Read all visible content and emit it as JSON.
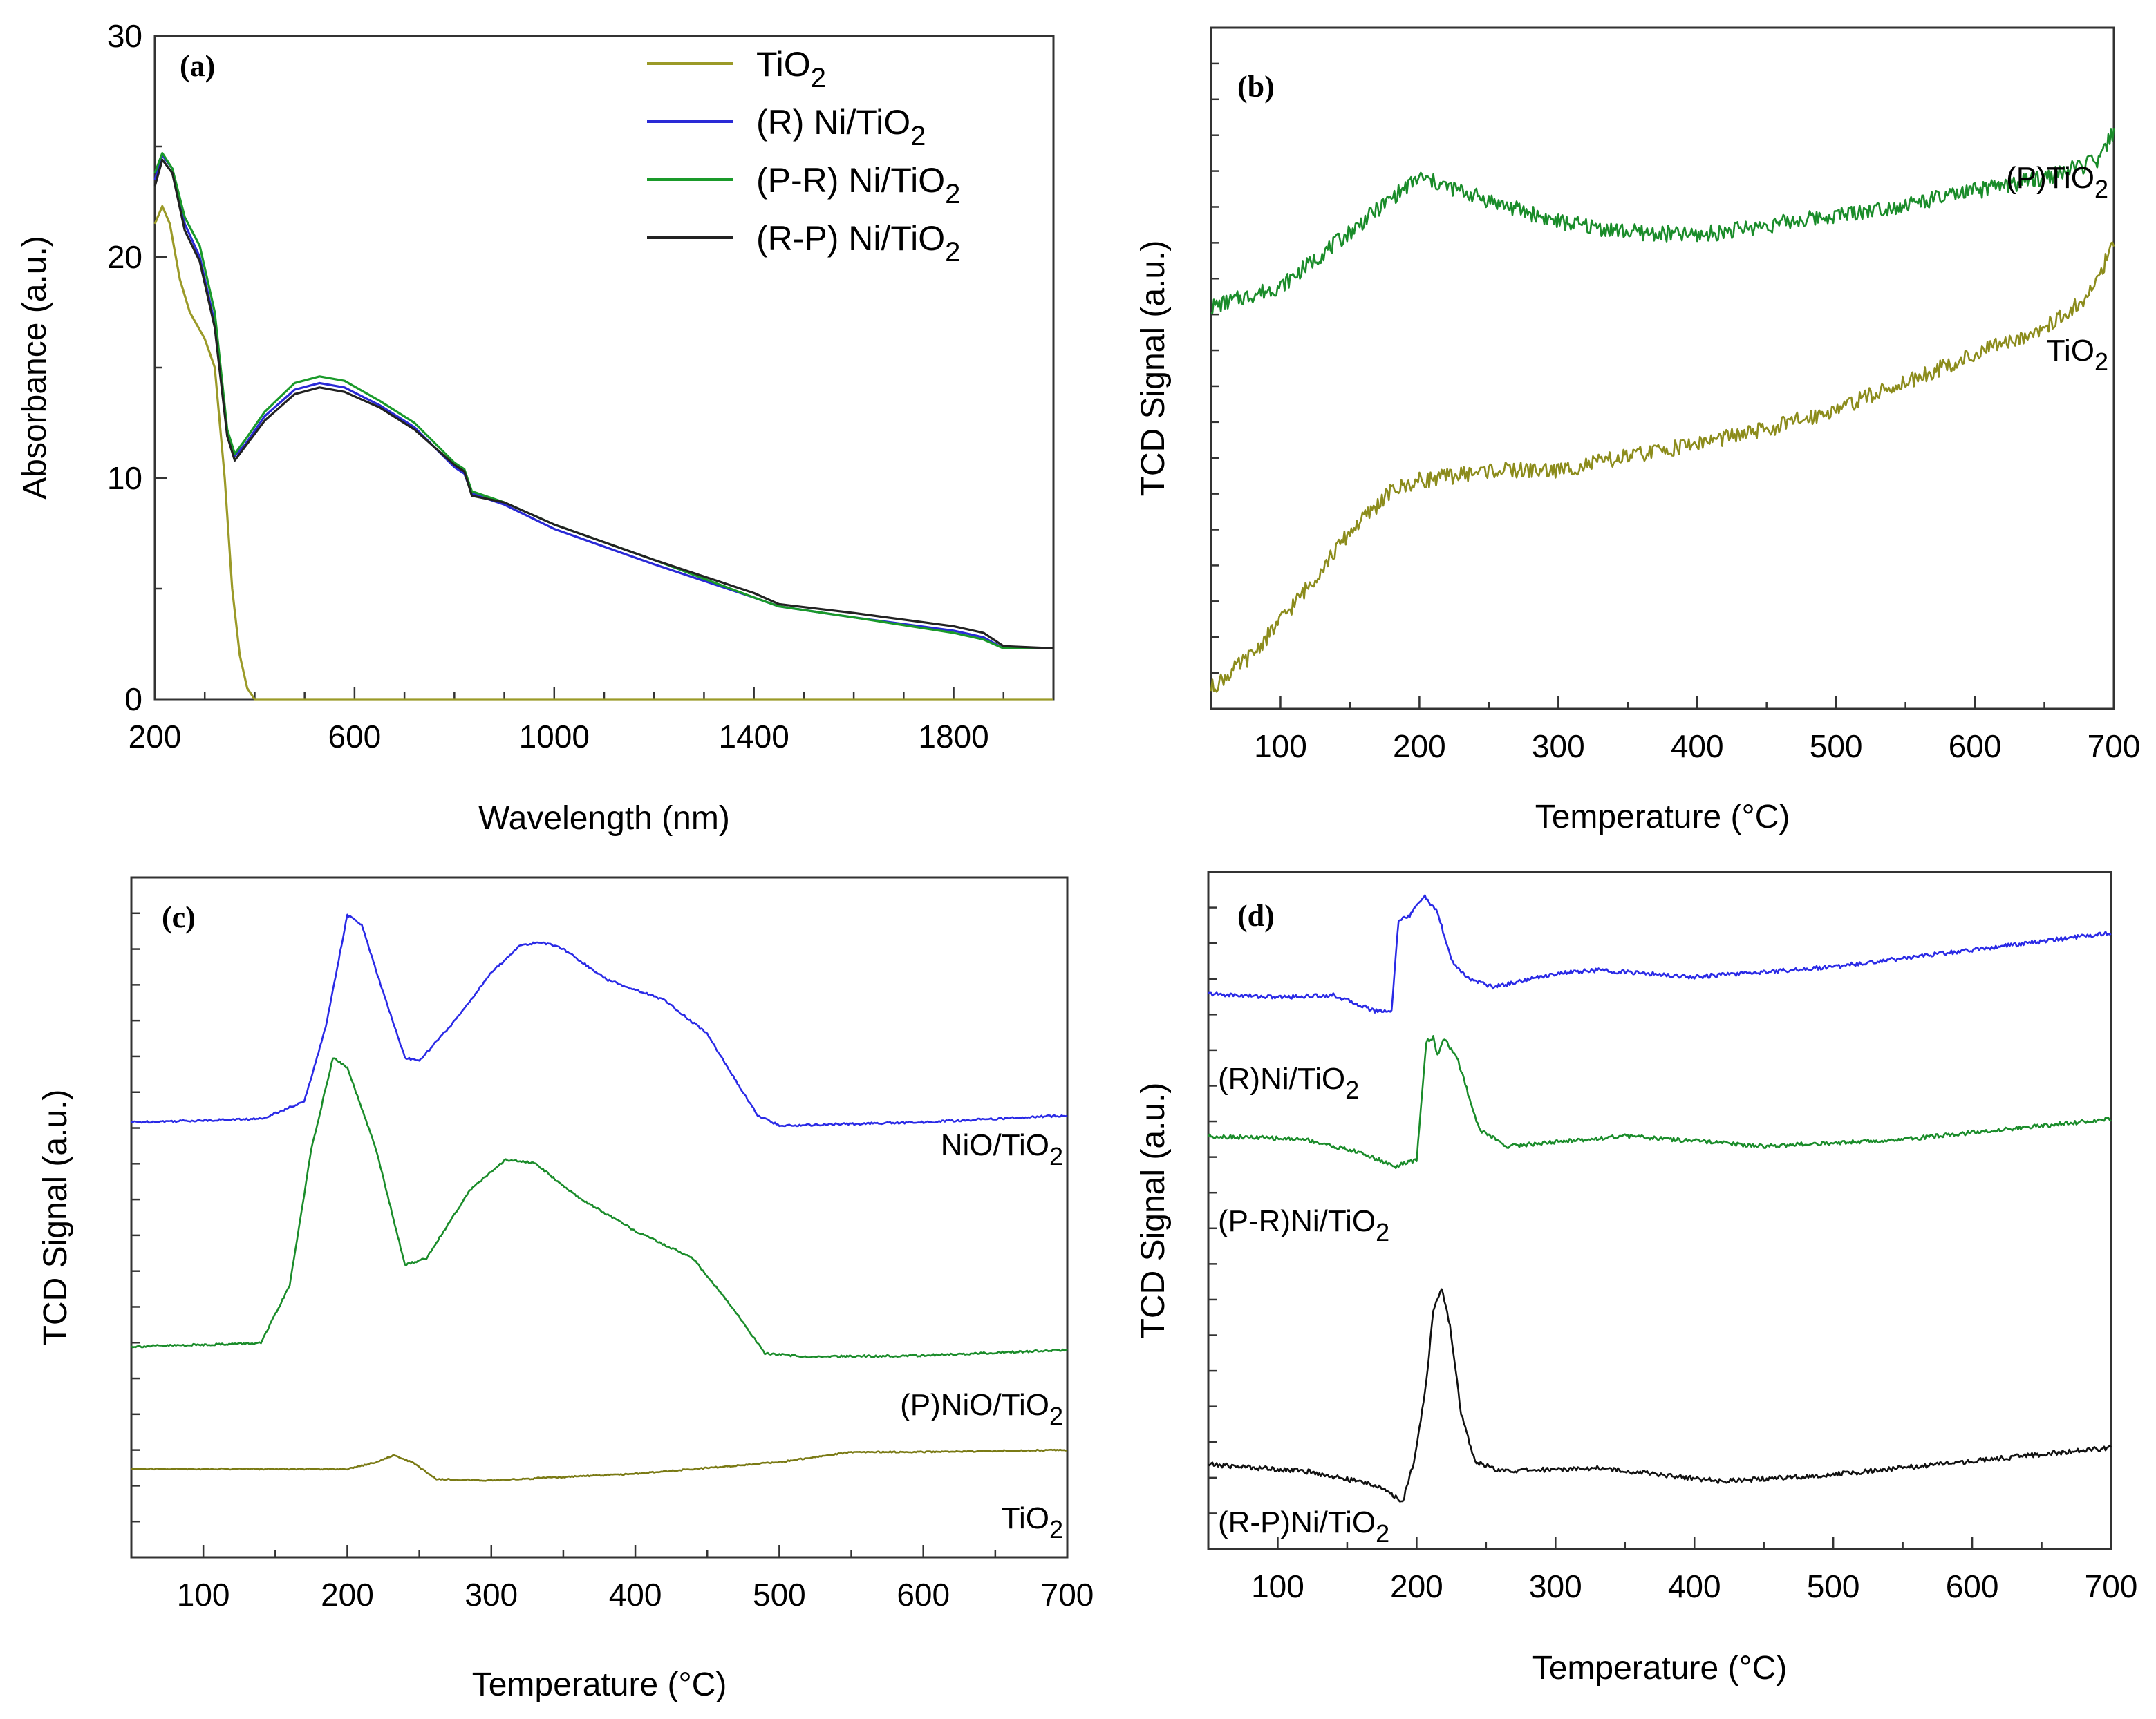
{
  "chart_data": [
    {
      "id": "a",
      "type": "line",
      "panel_label": "(a)",
      "xlabel": "Wavelength (nm)",
      "ylabel": "Absorbance (a.u.)",
      "xlim": [
        200,
        2000
      ],
      "ylim": [
        0,
        30
      ],
      "xticks": [
        200,
        600,
        1000,
        1400,
        1800
      ],
      "yticks": [
        0,
        10,
        20,
        30
      ],
      "legend": "top-right",
      "series": [
        {
          "name": "TiO2",
          "label_main": "TiO",
          "label_sub": "2",
          "color": "#9b9a28",
          "points": [
            [
              200,
              21.5
            ],
            [
              215,
              22.3
            ],
            [
              230,
              21.5
            ],
            [
              250,
              19
            ],
            [
              270,
              17.5
            ],
            [
              300,
              16.3
            ],
            [
              320,
              15
            ],
            [
              340,
              10
            ],
            [
              355,
              5
            ],
            [
              370,
              2
            ],
            [
              385,
              0.5
            ],
            [
              400,
              0
            ],
            [
              2000,
              0
            ]
          ]
        },
        {
          "name": "(R) Ni/TiO2",
          "label_main": "(R) Ni/TiO",
          "label_sub": "2",
          "color": "#2a2ad6",
          "points": [
            [
              200,
              23.5
            ],
            [
              215,
              24.6
            ],
            [
              235,
              24
            ],
            [
              260,
              21.5
            ],
            [
              290,
              20
            ],
            [
              320,
              17
            ],
            [
              345,
              12
            ],
            [
              360,
              11
            ],
            [
              380,
              11.5
            ],
            [
              420,
              12.8
            ],
            [
              480,
              14
            ],
            [
              530,
              14.3
            ],
            [
              580,
              14.1
            ],
            [
              650,
              13.3
            ],
            [
              720,
              12.3
            ],
            [
              800,
              10.5
            ],
            [
              820,
              10.2
            ],
            [
              835,
              9.3
            ],
            [
              900,
              8.8
            ],
            [
              1000,
              7.7
            ],
            [
              1200,
              6.1
            ],
            [
              1400,
              4.6
            ],
            [
              1450,
              4.2
            ],
            [
              1600,
              3.7
            ],
            [
              1800,
              3.1
            ],
            [
              1860,
              2.8
            ],
            [
              1900,
              2.3
            ],
            [
              2000,
              2.3
            ]
          ]
        },
        {
          "name": "(P-R) Ni/TiO2",
          "label_main": "(P-R) Ni/TiO",
          "label_sub": "2",
          "color": "#1a9a2a",
          "points": [
            [
              200,
              23.8
            ],
            [
              215,
              24.7
            ],
            [
              235,
              24
            ],
            [
              260,
              21.8
            ],
            [
              290,
              20.5
            ],
            [
              320,
              17.5
            ],
            [
              345,
              12.2
            ],
            [
              360,
              11.1
            ],
            [
              380,
              11.7
            ],
            [
              420,
              13
            ],
            [
              480,
              14.3
            ],
            [
              530,
              14.6
            ],
            [
              580,
              14.4
            ],
            [
              650,
              13.5
            ],
            [
              720,
              12.5
            ],
            [
              800,
              10.7
            ],
            [
              820,
              10.4
            ],
            [
              835,
              9.4
            ],
            [
              900,
              8.9
            ],
            [
              1000,
              7.9
            ],
            [
              1200,
              6.3
            ],
            [
              1400,
              4.6
            ],
            [
              1450,
              4.2
            ],
            [
              1600,
              3.7
            ],
            [
              1800,
              3.0
            ],
            [
              1860,
              2.7
            ],
            [
              1900,
              2.3
            ],
            [
              2000,
              2.3
            ]
          ]
        },
        {
          "name": "(R-P) Ni/TiO2",
          "label_main": "(R-P) Ni/TiO",
          "label_sub": "2",
          "color": "#222222",
          "points": [
            [
              200,
              23.2
            ],
            [
              215,
              24.4
            ],
            [
              235,
              23.8
            ],
            [
              260,
              21.2
            ],
            [
              290,
              19.8
            ],
            [
              320,
              16.8
            ],
            [
              345,
              11.9
            ],
            [
              360,
              10.8
            ],
            [
              380,
              11.4
            ],
            [
              420,
              12.6
            ],
            [
              480,
              13.8
            ],
            [
              530,
              14.1
            ],
            [
              580,
              13.9
            ],
            [
              650,
              13.2
            ],
            [
              720,
              12.2
            ],
            [
              800,
              10.6
            ],
            [
              820,
              10.3
            ],
            [
              835,
              9.2
            ],
            [
              900,
              8.9
            ],
            [
              1000,
              7.9
            ],
            [
              1200,
              6.3
            ],
            [
              1400,
              4.8
            ],
            [
              1450,
              4.3
            ],
            [
              1600,
              3.9
            ],
            [
              1800,
              3.3
            ],
            [
              1860,
              3.0
            ],
            [
              1900,
              2.4
            ],
            [
              2000,
              2.3
            ]
          ]
        }
      ]
    },
    {
      "id": "b",
      "type": "line",
      "panel_label": "(b)",
      "xlabel": "Temperature (°C)",
      "ylabel": "TCD Signal (a.u.)",
      "xlim": [
        50,
        700
      ],
      "ylim": [
        0,
        100
      ],
      "xticks": [
        100,
        200,
        300,
        400,
        500,
        600,
        700
      ],
      "series": [
        {
          "name": "(P)TiO2",
          "label_main": "(P)TiO",
          "label_sub": "2",
          "color": "#1a8c2a",
          "noise": 1.2,
          "points": [
            [
              50,
              59
            ],
            [
              100,
              62
            ],
            [
              150,
              70
            ],
            [
              180,
              75
            ],
            [
              200,
              78
            ],
            [
              230,
              76
            ],
            [
              260,
              74
            ],
            [
              300,
              71.5
            ],
            [
              350,
              70
            ],
            [
              400,
              69.5
            ],
            [
              450,
              71
            ],
            [
              500,
              72.5
            ],
            [
              550,
              74
            ],
            [
              600,
              76
            ],
            [
              650,
              78
            ],
            [
              690,
              80.5
            ],
            [
              700,
              85
            ]
          ]
        },
        {
          "name": "TiO2",
          "label_main": "TiO",
          "label_sub": "2",
          "color": "#8c8c1c",
          "noise": 1.2,
          "points": [
            [
              50,
              3
            ],
            [
              80,
              8
            ],
            [
              120,
              18
            ],
            [
              150,
              26
            ],
            [
              180,
              32
            ],
            [
              200,
              33.5
            ],
            [
              250,
              35
            ],
            [
              300,
              35
            ],
            [
              350,
              37
            ],
            [
              400,
              39
            ],
            [
              450,
              41
            ],
            [
              500,
              44
            ],
            [
              550,
              48
            ],
            [
              600,
              52
            ],
            [
              650,
              56
            ],
            [
              680,
              60
            ],
            [
              700,
              68
            ]
          ]
        }
      ]
    },
    {
      "id": "c",
      "type": "line",
      "panel_label": "(c)",
      "xlabel": "Temperature (°C)",
      "ylabel": "TCD Signal (a.u.)",
      "xlim": [
        50,
        700
      ],
      "ylim": [
        0,
        100
      ],
      "xticks": [
        100,
        200,
        300,
        400,
        500,
        600,
        700
      ],
      "series": [
        {
          "name": "NiO/TiO2",
          "label_main": "NiO/TiO",
          "label_sub": "2",
          "color": "#2a2ae6",
          "noise": 0.15,
          "points": [
            [
              50,
              64
            ],
            [
              140,
              64.5
            ],
            [
              170,
              67
            ],
            [
              185,
              78
            ],
            [
              200,
              94.5
            ],
            [
              210,
              93
            ],
            [
              225,
              83
            ],
            [
              240,
              73.5
            ],
            [
              250,
              73
            ],
            [
              275,
              79
            ],
            [
              300,
              86
            ],
            [
              320,
              90
            ],
            [
              335,
              90.5
            ],
            [
              350,
              89.5
            ],
            [
              380,
              85
            ],
            [
              420,
              82
            ],
            [
              450,
              77
            ],
            [
              470,
              70
            ],
            [
              485,
              65
            ],
            [
              500,
              63.5
            ],
            [
              600,
              64
            ],
            [
              700,
              65
            ]
          ]
        },
        {
          "name": "(P)NiO/TiO2",
          "label_main": "(P)NiO/TiO",
          "label_sub": "2",
          "color": "#1a8c2a",
          "noise": 0.15,
          "points": [
            [
              50,
              31
            ],
            [
              140,
              31.5
            ],
            [
              160,
              40
            ],
            [
              175,
              60
            ],
            [
              190,
              73.5
            ],
            [
              200,
              72
            ],
            [
              220,
              60
            ],
            [
              240,
              43
            ],
            [
              255,
              44
            ],
            [
              285,
              54
            ],
            [
              310,
              58.5
            ],
            [
              330,
              58
            ],
            [
              360,
              53
            ],
            [
              400,
              48
            ],
            [
              440,
              44
            ],
            [
              470,
              36
            ],
            [
              490,
              30
            ],
            [
              520,
              29.5
            ],
            [
              600,
              29.7
            ],
            [
              700,
              30.5
            ]
          ]
        },
        {
          "name": "TiO2",
          "label_main": "TiO",
          "label_sub": "2",
          "color": "#7a7a14",
          "noise": 0.1,
          "points": [
            [
              50,
              13
            ],
            [
              200,
              13
            ],
            [
              220,
              14
            ],
            [
              232,
              15
            ],
            [
              245,
              14
            ],
            [
              262,
              11.5
            ],
            [
              300,
              11.3
            ],
            [
              400,
              12.3
            ],
            [
              500,
              14
            ],
            [
              550,
              15.5
            ],
            [
              600,
              15.5
            ],
            [
              700,
              15.8
            ]
          ]
        }
      ]
    },
    {
      "id": "d",
      "type": "line",
      "panel_label": "(d)",
      "xlabel": "Temperature (°C)",
      "ylabel": "TCD Signal (a.u.)",
      "xlim": [
        50,
        700
      ],
      "ylim": [
        0,
        100
      ],
      "xticks": [
        100,
        200,
        300,
        400,
        500,
        600,
        700
      ],
      "series": [
        {
          "name": "(R)Ni/TiO2",
          "label_main": "(R)Ni/TiO",
          "label_sub": "2",
          "color": "#2a2ae6",
          "noise": 0.3,
          "points": [
            [
              50,
              82
            ],
            [
              100,
              81.5
            ],
            [
              140,
              81.8
            ],
            [
              170,
              79.5
            ],
            [
              182,
              79.5
            ],
            [
              187,
              93
            ],
            [
              195,
              93.5
            ],
            [
              205,
              96.5
            ],
            [
              215,
              94
            ],
            [
              225,
              87
            ],
            [
              235,
              84.5
            ],
            [
              255,
              83
            ],
            [
              300,
              85
            ],
            [
              330,
              85.5
            ],
            [
              400,
              84.5
            ],
            [
              500,
              86
            ],
            [
              600,
              88.5
            ],
            [
              700,
              91
            ]
          ]
        },
        {
          "name": "(P-R)Ni/TiO2",
          "label_main": "(P-R)Ni/TiO",
          "label_sub": "2",
          "color": "#1a8c2a",
          "noise": 0.3,
          "points": [
            [
              50,
              61
            ],
            [
              120,
              60.5
            ],
            [
              160,
              58.5
            ],
            [
              185,
              56.5
            ],
            [
              200,
              57.5
            ],
            [
              207,
              75
            ],
            [
              212,
              75.5
            ],
            [
              215,
              73
            ],
            [
              220,
              75.5
            ],
            [
              230,
              72
            ],
            [
              245,
              62
            ],
            [
              265,
              59.5
            ],
            [
              350,
              61
            ],
            [
              450,
              59.5
            ],
            [
              550,
              60.5
            ],
            [
              700,
              63.5
            ]
          ]
        },
        {
          "name": "(R-P)Ni/TiO2",
          "label_main": "(R-P)Ni/TiO",
          "label_sub": "2",
          "color": "#111111",
          "noise": 0.35,
          "points": [
            [
              50,
              12.5
            ],
            [
              120,
              11.5
            ],
            [
              170,
              9.5
            ],
            [
              190,
              7
            ],
            [
              198,
              13
            ],
            [
              206,
              23
            ],
            [
              212,
              35
            ],
            [
              218,
              38.5
            ],
            [
              224,
              33
            ],
            [
              232,
              20
            ],
            [
              242,
              13
            ],
            [
              260,
              11.5
            ],
            [
              330,
              12
            ],
            [
              420,
              10
            ],
            [
              500,
              11
            ],
            [
              600,
              13
            ],
            [
              700,
              15
            ]
          ]
        }
      ]
    }
  ]
}
